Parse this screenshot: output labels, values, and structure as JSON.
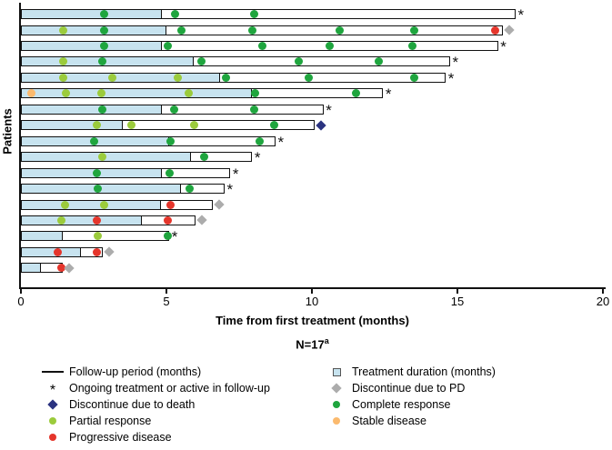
{
  "axis": {
    "xlabel": "Time from first treatment (months)",
    "ylabel": "Patients",
    "tick_labels": [
      "0",
      "5",
      "10",
      "15",
      "20"
    ],
    "tick_values": [
      0,
      5,
      10,
      15,
      20
    ],
    "xlim": [
      0,
      20
    ]
  },
  "footer": {
    "n_label": "N=17",
    "footnote_marker": "a"
  },
  "colors": {
    "treatment_fill": "#C7E3EF",
    "followup_fill": "#FFFFFF",
    "bar_border": "#111111",
    "complete_response": "#1FA53E",
    "partial_response": "#9BCB3C",
    "progressive_disease": "#E5352B",
    "stable_disease": "#FBBA6E",
    "death_diamond": "#2B3380",
    "pd_diamond": "#ACACAC",
    "asterisk": "#111111"
  },
  "chart_data": {
    "type": "swimmer-bar",
    "x_unit": "months",
    "n_patients": 17,
    "patients": [
      {
        "treatment": 4.85,
        "followup": 17.0,
        "end": "ongoing",
        "events": [
          {
            "t": 2.85,
            "type": "CR"
          },
          {
            "t": 5.3,
            "type": "CR"
          },
          {
            "t": 8.0,
            "type": "CR"
          }
        ]
      },
      {
        "treatment": 5.0,
        "followup": 16.55,
        "end": "pd",
        "events": [
          {
            "t": 1.45,
            "type": "PR"
          },
          {
            "t": 2.85,
            "type": "CR"
          },
          {
            "t": 5.5,
            "type": "CR"
          },
          {
            "t": 7.95,
            "type": "CR"
          },
          {
            "t": 10.95,
            "type": "CR"
          },
          {
            "t": 13.5,
            "type": "CR"
          },
          {
            "t": 16.3,
            "type": "PD"
          }
        ]
      },
      {
        "treatment": 4.85,
        "followup": 16.4,
        "end": "ongoing",
        "events": [
          {
            "t": 2.85,
            "type": "CR"
          },
          {
            "t": 5.05,
            "type": "CR"
          },
          {
            "t": 8.3,
            "type": "CR"
          },
          {
            "t": 10.6,
            "type": "CR"
          },
          {
            "t": 13.45,
            "type": "CR"
          }
        ]
      },
      {
        "treatment": 5.95,
        "followup": 14.75,
        "end": "ongoing",
        "events": [
          {
            "t": 1.45,
            "type": "PR"
          },
          {
            "t": 2.8,
            "type": "CR"
          },
          {
            "t": 6.2,
            "type": "CR"
          },
          {
            "t": 9.55,
            "type": "CR"
          },
          {
            "t": 12.3,
            "type": "CR"
          }
        ]
      },
      {
        "treatment": 6.85,
        "followup": 14.6,
        "end": "ongoing",
        "events": [
          {
            "t": 1.45,
            "type": "PR"
          },
          {
            "t": 3.15,
            "type": "PR"
          },
          {
            "t": 5.4,
            "type": "PR"
          },
          {
            "t": 7.05,
            "type": "CR"
          },
          {
            "t": 9.9,
            "type": "CR"
          },
          {
            "t": 13.5,
            "type": "CR"
          }
        ]
      },
      {
        "treatment": 7.95,
        "followup": 12.45,
        "end": "ongoing",
        "events": [
          {
            "t": 0.35,
            "type": "SD"
          },
          {
            "t": 1.55,
            "type": "PR"
          },
          {
            "t": 2.75,
            "type": "PR"
          },
          {
            "t": 5.75,
            "type": "PR"
          },
          {
            "t": 8.05,
            "type": "CR"
          },
          {
            "t": 11.5,
            "type": "CR"
          }
        ]
      },
      {
        "treatment": 4.85,
        "followup": 10.4,
        "end": "ongoing",
        "events": [
          {
            "t": 2.8,
            "type": "CR"
          },
          {
            "t": 5.25,
            "type": "CR"
          },
          {
            "t": 8.0,
            "type": "CR"
          }
        ]
      },
      {
        "treatment": 3.5,
        "followup": 10.1,
        "end": "death",
        "events": [
          {
            "t": 2.6,
            "type": "PR"
          },
          {
            "t": 3.8,
            "type": "PR"
          },
          {
            "t": 5.95,
            "type": "PR"
          },
          {
            "t": 8.7,
            "type": "CR"
          }
        ]
      },
      {
        "treatment": 5.1,
        "followup": 8.75,
        "end": "ongoing",
        "events": [
          {
            "t": 2.5,
            "type": "CR"
          },
          {
            "t": 5.15,
            "type": "CR"
          },
          {
            "t": 8.2,
            "type": "CR"
          }
        ]
      },
      {
        "treatment": 5.85,
        "followup": 7.95,
        "end": "ongoing",
        "events": [
          {
            "t": 2.8,
            "type": "PR"
          },
          {
            "t": 6.3,
            "type": "CR"
          }
        ]
      },
      {
        "treatment": 4.85,
        "followup": 7.2,
        "end": "ongoing",
        "events": [
          {
            "t": 2.6,
            "type": "CR"
          },
          {
            "t": 5.1,
            "type": "CR"
          }
        ]
      },
      {
        "treatment": 5.5,
        "followup": 7.0,
        "end": "ongoing",
        "events": [
          {
            "t": 2.65,
            "type": "CR"
          },
          {
            "t": 5.8,
            "type": "CR"
          }
        ]
      },
      {
        "treatment": 4.8,
        "followup": 6.6,
        "end": "pd",
        "events": [
          {
            "t": 1.5,
            "type": "PR"
          },
          {
            "t": 2.85,
            "type": "PR"
          },
          {
            "t": 5.15,
            "type": "PD"
          }
        ]
      },
      {
        "treatment": 4.15,
        "followup": 6.0,
        "end": "pd",
        "events": [
          {
            "t": 1.4,
            "type": "PR"
          },
          {
            "t": 2.6,
            "type": "PD"
          },
          {
            "t": 5.05,
            "type": "PD"
          }
        ]
      },
      {
        "treatment": 1.45,
        "followup": 5.1,
        "end": "ongoing",
        "events": [
          {
            "t": 2.65,
            "type": "PR"
          },
          {
            "t": 5.05,
            "type": "CR"
          }
        ]
      },
      {
        "treatment": 2.05,
        "followup": 2.8,
        "end": "pd",
        "events": [
          {
            "t": 1.25,
            "type": "PD"
          },
          {
            "t": 2.6,
            "type": "PD"
          }
        ]
      },
      {
        "treatment": 0.7,
        "followup": 1.45,
        "end": "pd",
        "events": [
          {
            "t": 1.4,
            "type": "PD"
          }
        ]
      }
    ]
  },
  "legend": {
    "left": [
      {
        "symbol": "line",
        "label": "Follow-up period (months)"
      },
      {
        "symbol": "asterisk",
        "label": "Ongoing treatment or active in follow-up"
      },
      {
        "symbol": "diamond-navy",
        "label": "Discontinue due to death"
      },
      {
        "symbol": "dot-yellowgreen",
        "label": "Partial response"
      },
      {
        "symbol": "dot-red",
        "label": "Progressive disease"
      }
    ],
    "right": [
      {
        "symbol": "square-lightblue",
        "label": "Treatment duration (months)"
      },
      {
        "symbol": "diamond-gray",
        "label": "Discontinue due to PD"
      },
      {
        "symbol": "dot-green",
        "label": "Complete response"
      },
      {
        "symbol": "dot-orange",
        "label": "Stable disease"
      }
    ]
  }
}
